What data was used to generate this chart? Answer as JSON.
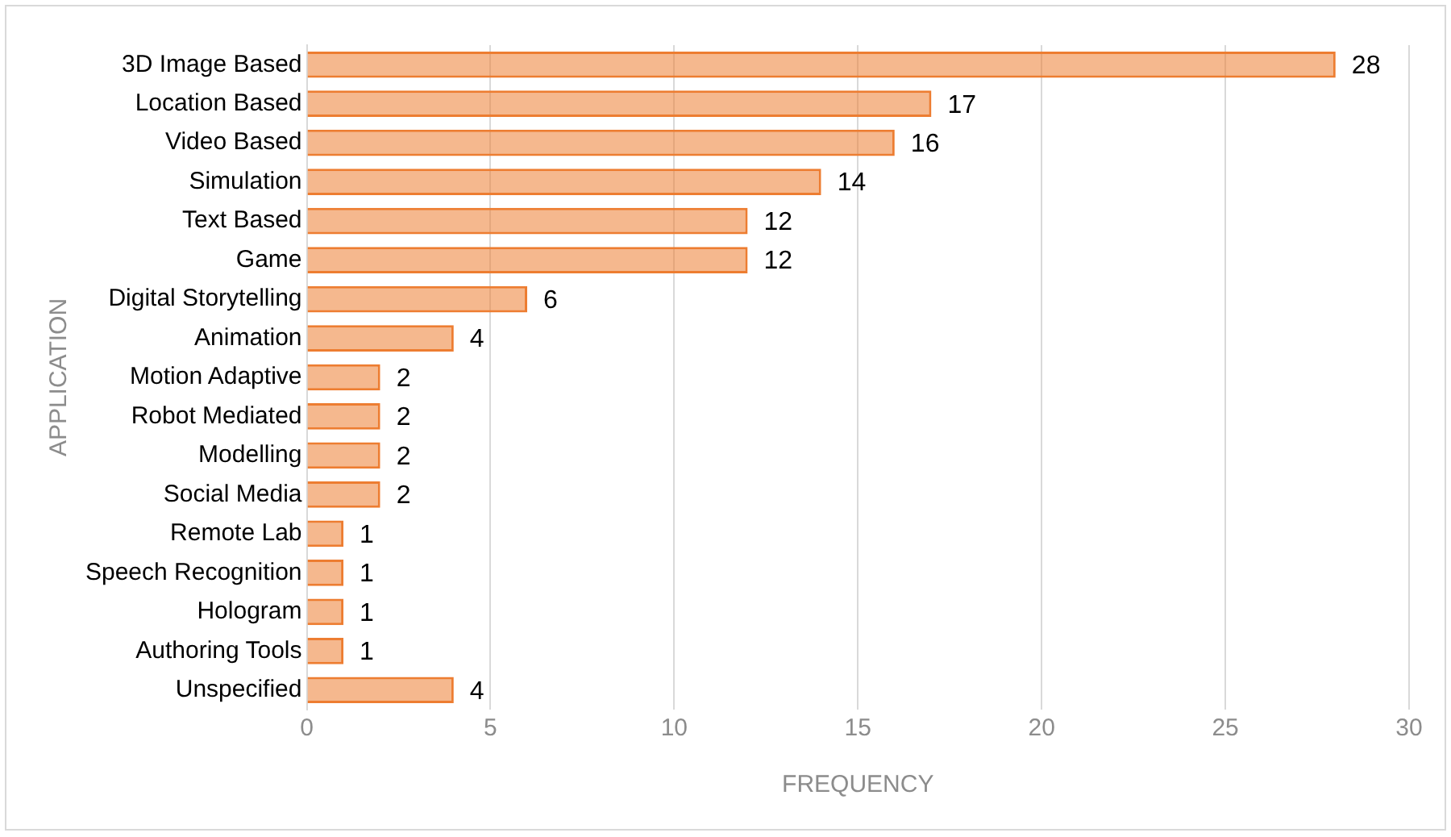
{
  "chart_data": {
    "type": "bar",
    "orientation": "horizontal",
    "xlabel": "FREQUENCY",
    "ylabel": "APPLICATION",
    "categories": [
      "3D Image Based",
      "Location Based",
      "Video Based",
      "Simulation",
      "Text Based",
      "Game",
      "Digital Storytelling",
      "Animation",
      "Motion Adaptive",
      "Robot Mediated",
      "Modelling",
      "Social Media",
      "Remote Lab",
      "Speech Recognition",
      "Hologram",
      "Authoring Tools",
      "Unspecified"
    ],
    "values": [
      28,
      17,
      16,
      14,
      12,
      12,
      6,
      4,
      2,
      2,
      2,
      2,
      1,
      1,
      1,
      1,
      4
    ],
    "color": "#ed7d31",
    "xlim": [
      0,
      30
    ],
    "xticks": [
      0,
      5,
      10,
      15,
      20,
      25,
      30
    ],
    "grid": "x",
    "data_labels": true,
    "legend": false
  }
}
